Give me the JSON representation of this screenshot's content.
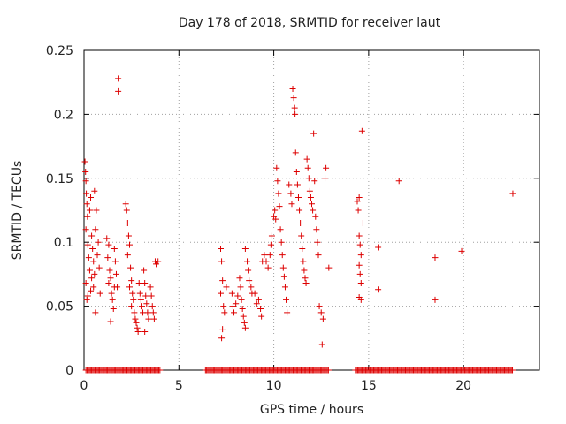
{
  "chart_data": {
    "type": "scatter",
    "title": "Day 178 of 2018, SRMTID for receiver laut",
    "xlabel": "GPS time / hours",
    "ylabel": "SRMTID / TECUs",
    "xlim": [
      0,
      24
    ],
    "ylim": [
      0,
      0.25
    ],
    "xticks": [
      0,
      5,
      10,
      15,
      20
    ],
    "yticks": [
      0,
      0.05,
      0.1,
      0.15,
      0.2,
      0.25
    ],
    "ytick_labels": [
      "0",
      "0.05",
      "0.1",
      "0.15",
      "0.2",
      "0.25"
    ],
    "grid": true,
    "marker": "+",
    "color": "#dd0000",
    "series": [
      {
        "name": "SRMTID",
        "points": [
          [
            0.05,
            0.163
          ],
          [
            0.08,
            0.155
          ],
          [
            0.1,
            0.148
          ],
          [
            0.12,
            0.138
          ],
          [
            0.15,
            0.13
          ],
          [
            0.18,
            0.12
          ],
          [
            0.1,
            0.11
          ],
          [
            0.2,
            0.098
          ],
          [
            0.25,
            0.088
          ],
          [
            0.3,
            0.078
          ],
          [
            0.1,
            0.068
          ],
          [
            0.2,
            0.058
          ],
          [
            0.35,
            0.062
          ],
          [
            0.4,
            0.072
          ],
          [
            0.15,
            0.055
          ],
          [
            0.3,
            0.125
          ],
          [
            0.35,
            0.135
          ],
          [
            0.4,
            0.105
          ],
          [
            0.45,
            0.095
          ],
          [
            0.5,
            0.085
          ],
          [
            0.55,
            0.075
          ],
          [
            0.5,
            0.065
          ],
          [
            0.6,
            0.11
          ],
          [
            0.6,
            0.045
          ],
          [
            0.65,
            0.125
          ],
          [
            0.7,
            0.09
          ],
          [
            0.55,
            0.14
          ],
          [
            0.75,
            0.1
          ],
          [
            0.8,
            0.08
          ],
          [
            0.85,
            0.06
          ],
          [
            1.2,
            0.103
          ],
          [
            1.3,
            0.098
          ],
          [
            1.25,
            0.088
          ],
          [
            1.35,
            0.078
          ],
          [
            1.4,
            0.072
          ],
          [
            1.3,
            0.068
          ],
          [
            1.45,
            0.06
          ],
          [
            1.5,
            0.055
          ],
          [
            1.55,
            0.048
          ],
          [
            1.4,
            0.038
          ],
          [
            1.6,
            0.095
          ],
          [
            1.65,
            0.085
          ],
          [
            1.7,
            0.075
          ],
          [
            1.75,
            0.065
          ],
          [
            1.8,
            0.228
          ],
          [
            1.8,
            0.218
          ],
          [
            1.6,
            0.065
          ],
          [
            2.2,
            0.13
          ],
          [
            2.25,
            0.125
          ],
          [
            2.3,
            0.115
          ],
          [
            2.35,
            0.105
          ],
          [
            2.4,
            0.098
          ],
          [
            2.3,
            0.09
          ],
          [
            2.45,
            0.08
          ],
          [
            2.5,
            0.07
          ],
          [
            2.4,
            0.065
          ],
          [
            2.55,
            0.06
          ],
          [
            2.6,
            0.055
          ],
          [
            2.5,
            0.05
          ],
          [
            2.65,
            0.045
          ],
          [
            2.7,
            0.04
          ],
          [
            2.75,
            0.037
          ],
          [
            2.8,
            0.033
          ],
          [
            2.85,
            0.03
          ],
          [
            2.9,
            0.068
          ],
          [
            2.95,
            0.06
          ],
          [
            3.0,
            0.055
          ],
          [
            3.05,
            0.05
          ],
          [
            3.1,
            0.045
          ],
          [
            3.15,
            0.078
          ],
          [
            3.2,
            0.068
          ],
          [
            3.25,
            0.058
          ],
          [
            3.3,
            0.052
          ],
          [
            3.35,
            0.045
          ],
          [
            3.4,
            0.04
          ],
          [
            3.2,
            0.03
          ],
          [
            3.5,
            0.065
          ],
          [
            3.55,
            0.058
          ],
          [
            3.6,
            0.05
          ],
          [
            3.65,
            0.045
          ],
          [
            3.7,
            0.04
          ],
          [
            3.75,
            0.085
          ],
          [
            3.8,
            0.083
          ],
          [
            3.9,
            0.085
          ],
          [
            7.2,
            0.095
          ],
          [
            7.25,
            0.085
          ],
          [
            7.3,
            0.07
          ],
          [
            7.2,
            0.06
          ],
          [
            7.35,
            0.05
          ],
          [
            7.4,
            0.045
          ],
          [
            7.3,
            0.032
          ],
          [
            7.25,
            0.025
          ],
          [
            7.5,
            0.065
          ],
          [
            7.8,
            0.06
          ],
          [
            7.85,
            0.05
          ],
          [
            7.9,
            0.045
          ],
          [
            8.0,
            0.052
          ],
          [
            8.1,
            0.058
          ],
          [
            8.2,
            0.072
          ],
          [
            8.25,
            0.065
          ],
          [
            8.3,
            0.055
          ],
          [
            8.35,
            0.048
          ],
          [
            8.4,
            0.042
          ],
          [
            8.45,
            0.037
          ],
          [
            8.5,
            0.033
          ],
          [
            8.5,
            0.095
          ],
          [
            8.6,
            0.085
          ],
          [
            8.65,
            0.078
          ],
          [
            8.7,
            0.07
          ],
          [
            8.8,
            0.065
          ],
          [
            8.85,
            0.06
          ],
          [
            9.0,
            0.06
          ],
          [
            9.1,
            0.052
          ],
          [
            9.2,
            0.055
          ],
          [
            9.3,
            0.048
          ],
          [
            9.35,
            0.042
          ],
          [
            9.4,
            0.085
          ],
          [
            9.5,
            0.09
          ],
          [
            9.6,
            0.085
          ],
          [
            9.7,
            0.08
          ],
          [
            9.8,
            0.09
          ],
          [
            9.85,
            0.098
          ],
          [
            9.9,
            0.105
          ],
          [
            10.0,
            0.12
          ],
          [
            10.05,
            0.125
          ],
          [
            10.1,
            0.118
          ],
          [
            10.15,
            0.158
          ],
          [
            10.2,
            0.148
          ],
          [
            10.25,
            0.138
          ],
          [
            10.3,
            0.128
          ],
          [
            10.35,
            0.11
          ],
          [
            10.4,
            0.1
          ],
          [
            10.45,
            0.09
          ],
          [
            10.5,
            0.08
          ],
          [
            10.55,
            0.073
          ],
          [
            10.6,
            0.065
          ],
          [
            10.65,
            0.055
          ],
          [
            10.7,
            0.045
          ],
          [
            10.8,
            0.145
          ],
          [
            10.9,
            0.138
          ],
          [
            10.95,
            0.13
          ],
          [
            11.0,
            0.22
          ],
          [
            11.05,
            0.213
          ],
          [
            11.1,
            0.205
          ],
          [
            11.12,
            0.2
          ],
          [
            11.15,
            0.17
          ],
          [
            11.2,
            0.155
          ],
          [
            11.25,
            0.145
          ],
          [
            11.3,
            0.135
          ],
          [
            11.35,
            0.125
          ],
          [
            11.4,
            0.115
          ],
          [
            11.45,
            0.105
          ],
          [
            11.5,
            0.095
          ],
          [
            11.55,
            0.085
          ],
          [
            11.6,
            0.078
          ],
          [
            11.65,
            0.072
          ],
          [
            11.7,
            0.068
          ],
          [
            11.75,
            0.165
          ],
          [
            11.8,
            0.158
          ],
          [
            11.85,
            0.15
          ],
          [
            11.9,
            0.14
          ],
          [
            11.95,
            0.135
          ],
          [
            12.0,
            0.13
          ],
          [
            12.05,
            0.125
          ],
          [
            12.1,
            0.185
          ],
          [
            12.15,
            0.148
          ],
          [
            12.2,
            0.12
          ],
          [
            12.25,
            0.11
          ],
          [
            12.3,
            0.1
          ],
          [
            12.35,
            0.09
          ],
          [
            12.4,
            0.05
          ],
          [
            12.5,
            0.045
          ],
          [
            12.6,
            0.04
          ],
          [
            12.55,
            0.02
          ],
          [
            12.7,
            0.15
          ],
          [
            12.75,
            0.158
          ],
          [
            12.9,
            0.08
          ],
          [
            14.4,
            0.132
          ],
          [
            14.5,
            0.135
          ],
          [
            14.45,
            0.125
          ],
          [
            14.5,
            0.105
          ],
          [
            14.55,
            0.098
          ],
          [
            14.6,
            0.09
          ],
          [
            14.5,
            0.082
          ],
          [
            14.55,
            0.075
          ],
          [
            14.6,
            0.068
          ],
          [
            14.5,
            0.057
          ],
          [
            14.6,
            0.055
          ],
          [
            14.65,
            0.187
          ],
          [
            14.7,
            0.115
          ],
          [
            15.5,
            0.096
          ],
          [
            15.5,
            0.063
          ],
          [
            16.6,
            0.148
          ],
          [
            18.5,
            0.088
          ],
          [
            18.5,
            0.055
          ],
          [
            19.9,
            0.093
          ],
          [
            22.6,
            0.138
          ]
        ],
        "zero_runs": [
          [
            0.1,
            4.0
          ],
          [
            6.4,
            12.9
          ],
          [
            14.3,
            22.6
          ]
        ]
      }
    ]
  }
}
